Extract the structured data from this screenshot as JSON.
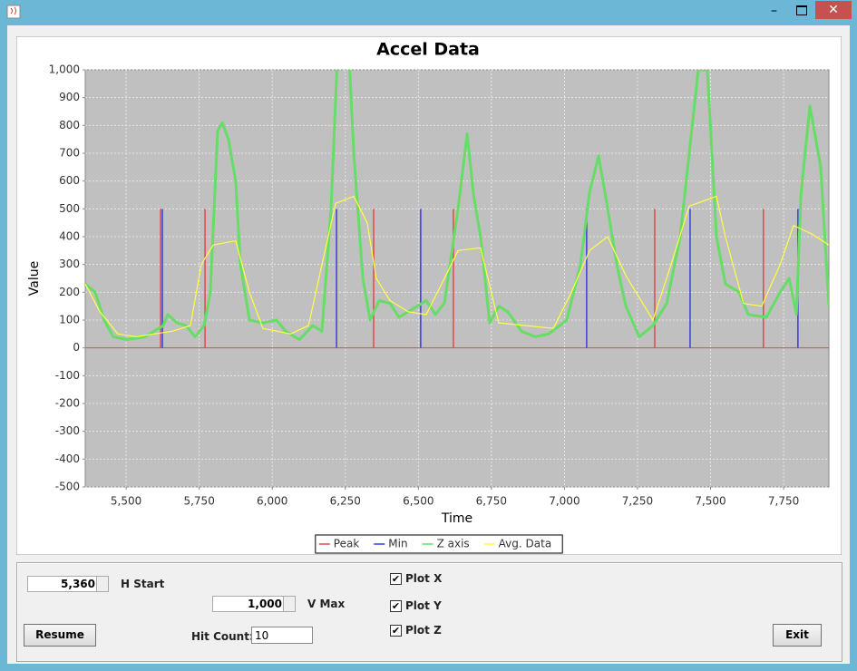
{
  "chart_data": {
    "type": "line",
    "title": "Accel Data",
    "x_label": "Time",
    "y_label": "Value",
    "xlim": [
      5360,
      7905
    ],
    "ylim": [
      -500,
      1000
    ],
    "xticks": [
      {
        "value": 5500,
        "label": "5,500"
      },
      {
        "value": 5750,
        "label": "5,750"
      },
      {
        "value": 6000,
        "label": "6,000"
      },
      {
        "value": 6250,
        "label": "6,250"
      },
      {
        "value": 6500,
        "label": "6,500"
      },
      {
        "value": 6750,
        "label": "6,750"
      },
      {
        "value": 7000,
        "label": "7,000"
      },
      {
        "value": 7250,
        "label": "7,250"
      },
      {
        "value": 7500,
        "label": "7,500"
      },
      {
        "value": 7750,
        "label": "7,750"
      }
    ],
    "yticks": [
      -500,
      -400,
      -300,
      -200,
      -100,
      0,
      100,
      200,
      300,
      400,
      500,
      600,
      700,
      800,
      900,
      {
        "value": 1000,
        "label": "1,000"
      }
    ],
    "grid": true,
    "legend": "bottom",
    "series": [
      {
        "name": "Peak",
        "color": "#e04848",
        "type": "spike",
        "x": [
          5618,
          5770,
          6347,
          6620,
          7309,
          7681
        ],
        "values": [
          500,
          500,
          500,
          500,
          500,
          500
        ]
      },
      {
        "name": "Min",
        "color": "#3a3ae8",
        "type": "spike",
        "x": [
          5624,
          6220,
          6508,
          7076,
          7430,
          7799
        ],
        "values": [
          500,
          500,
          500,
          500,
          500,
          500
        ]
      },
      {
        "name": "Z axis",
        "color": "#66dd66",
        "type": "line",
        "x": [
          5360,
          5394,
          5425,
          5456,
          5503,
          5565,
          5627,
          5642,
          5674,
          5705,
          5736,
          5767,
          5788,
          5813,
          5829,
          5850,
          5875,
          5891,
          5922,
          5968,
          6015,
          6046,
          6093,
          6139,
          6170,
          6201,
          6223,
          6263,
          6279,
          6310,
          6335,
          6366,
          6403,
          6434,
          6481,
          6527,
          6558,
          6589,
          6636,
          6667,
          6689,
          6713,
          6744,
          6775,
          6806,
          6853,
          6900,
          6946,
          7008,
          7055,
          7086,
          7117,
          7148,
          7179,
          7210,
          7256,
          7303,
          7350,
          7396,
          7427,
          7458,
          7489,
          7520,
          7551,
          7598,
          7629,
          7691,
          7738,
          7769,
          7794,
          7809,
          7840,
          7877,
          7905
        ],
        "values": [
          230,
          200,
          100,
          40,
          30,
          40,
          80,
          120,
          90,
          80,
          40,
          80,
          200,
          780,
          810,
          750,
          600,
          300,
          100,
          90,
          100,
          60,
          30,
          80,
          60,
          500,
          1050,
          1050,
          700,
          250,
          100,
          170,
          160,
          110,
          140,
          170,
          120,
          160,
          500,
          770,
          550,
          400,
          90,
          150,
          130,
          60,
          40,
          50,
          100,
          300,
          560,
          690,
          500,
          300,
          150,
          40,
          80,
          160,
          400,
          700,
          1000,
          1000,
          400,
          230,
          200,
          120,
          110,
          200,
          250,
          120,
          550,
          870,
          650,
          150
        ]
      },
      {
        "name": "Avg. Data",
        "color": "#ffff40",
        "type": "line",
        "x": [
          5360,
          5410,
          5472,
          5534,
          5596,
          5658,
          5720,
          5757,
          5798,
          5875,
          5922,
          5968,
          6062,
          6124,
          6170,
          6217,
          6279,
          6325,
          6356,
          6403,
          6465,
          6527,
          6589,
          6636,
          6713,
          6775,
          6868,
          6962,
          7024,
          7086,
          7148,
          7210,
          7303,
          7365,
          7427,
          7520,
          7551,
          7613,
          7675,
          7738,
          7784,
          7846,
          7905
        ],
        "values": [
          230,
          130,
          50,
          40,
          50,
          60,
          80,
          300,
          370,
          385,
          200,
          70,
          50,
          80,
          300,
          520,
          545,
          450,
          250,
          170,
          130,
          120,
          250,
          350,
          360,
          90,
          80,
          70,
          200,
          350,
          400,
          260,
          100,
          300,
          510,
          545,
          400,
          160,
          150,
          300,
          440,
          410,
          370
        ]
      }
    ]
  },
  "controls": {
    "h_start": {
      "label": "H Start",
      "value": "5,360"
    },
    "v_max": {
      "label": "V Max",
      "value": "1,000"
    },
    "checkboxes": [
      {
        "label": "Plot X",
        "checked": true
      },
      {
        "label": "Plot Y",
        "checked": true
      },
      {
        "label": "Plot Z",
        "checked": true
      }
    ],
    "resume_button": "Resume",
    "hit_count": {
      "label": "Hit Count:",
      "value": "10"
    },
    "exit_button": "Exit"
  }
}
